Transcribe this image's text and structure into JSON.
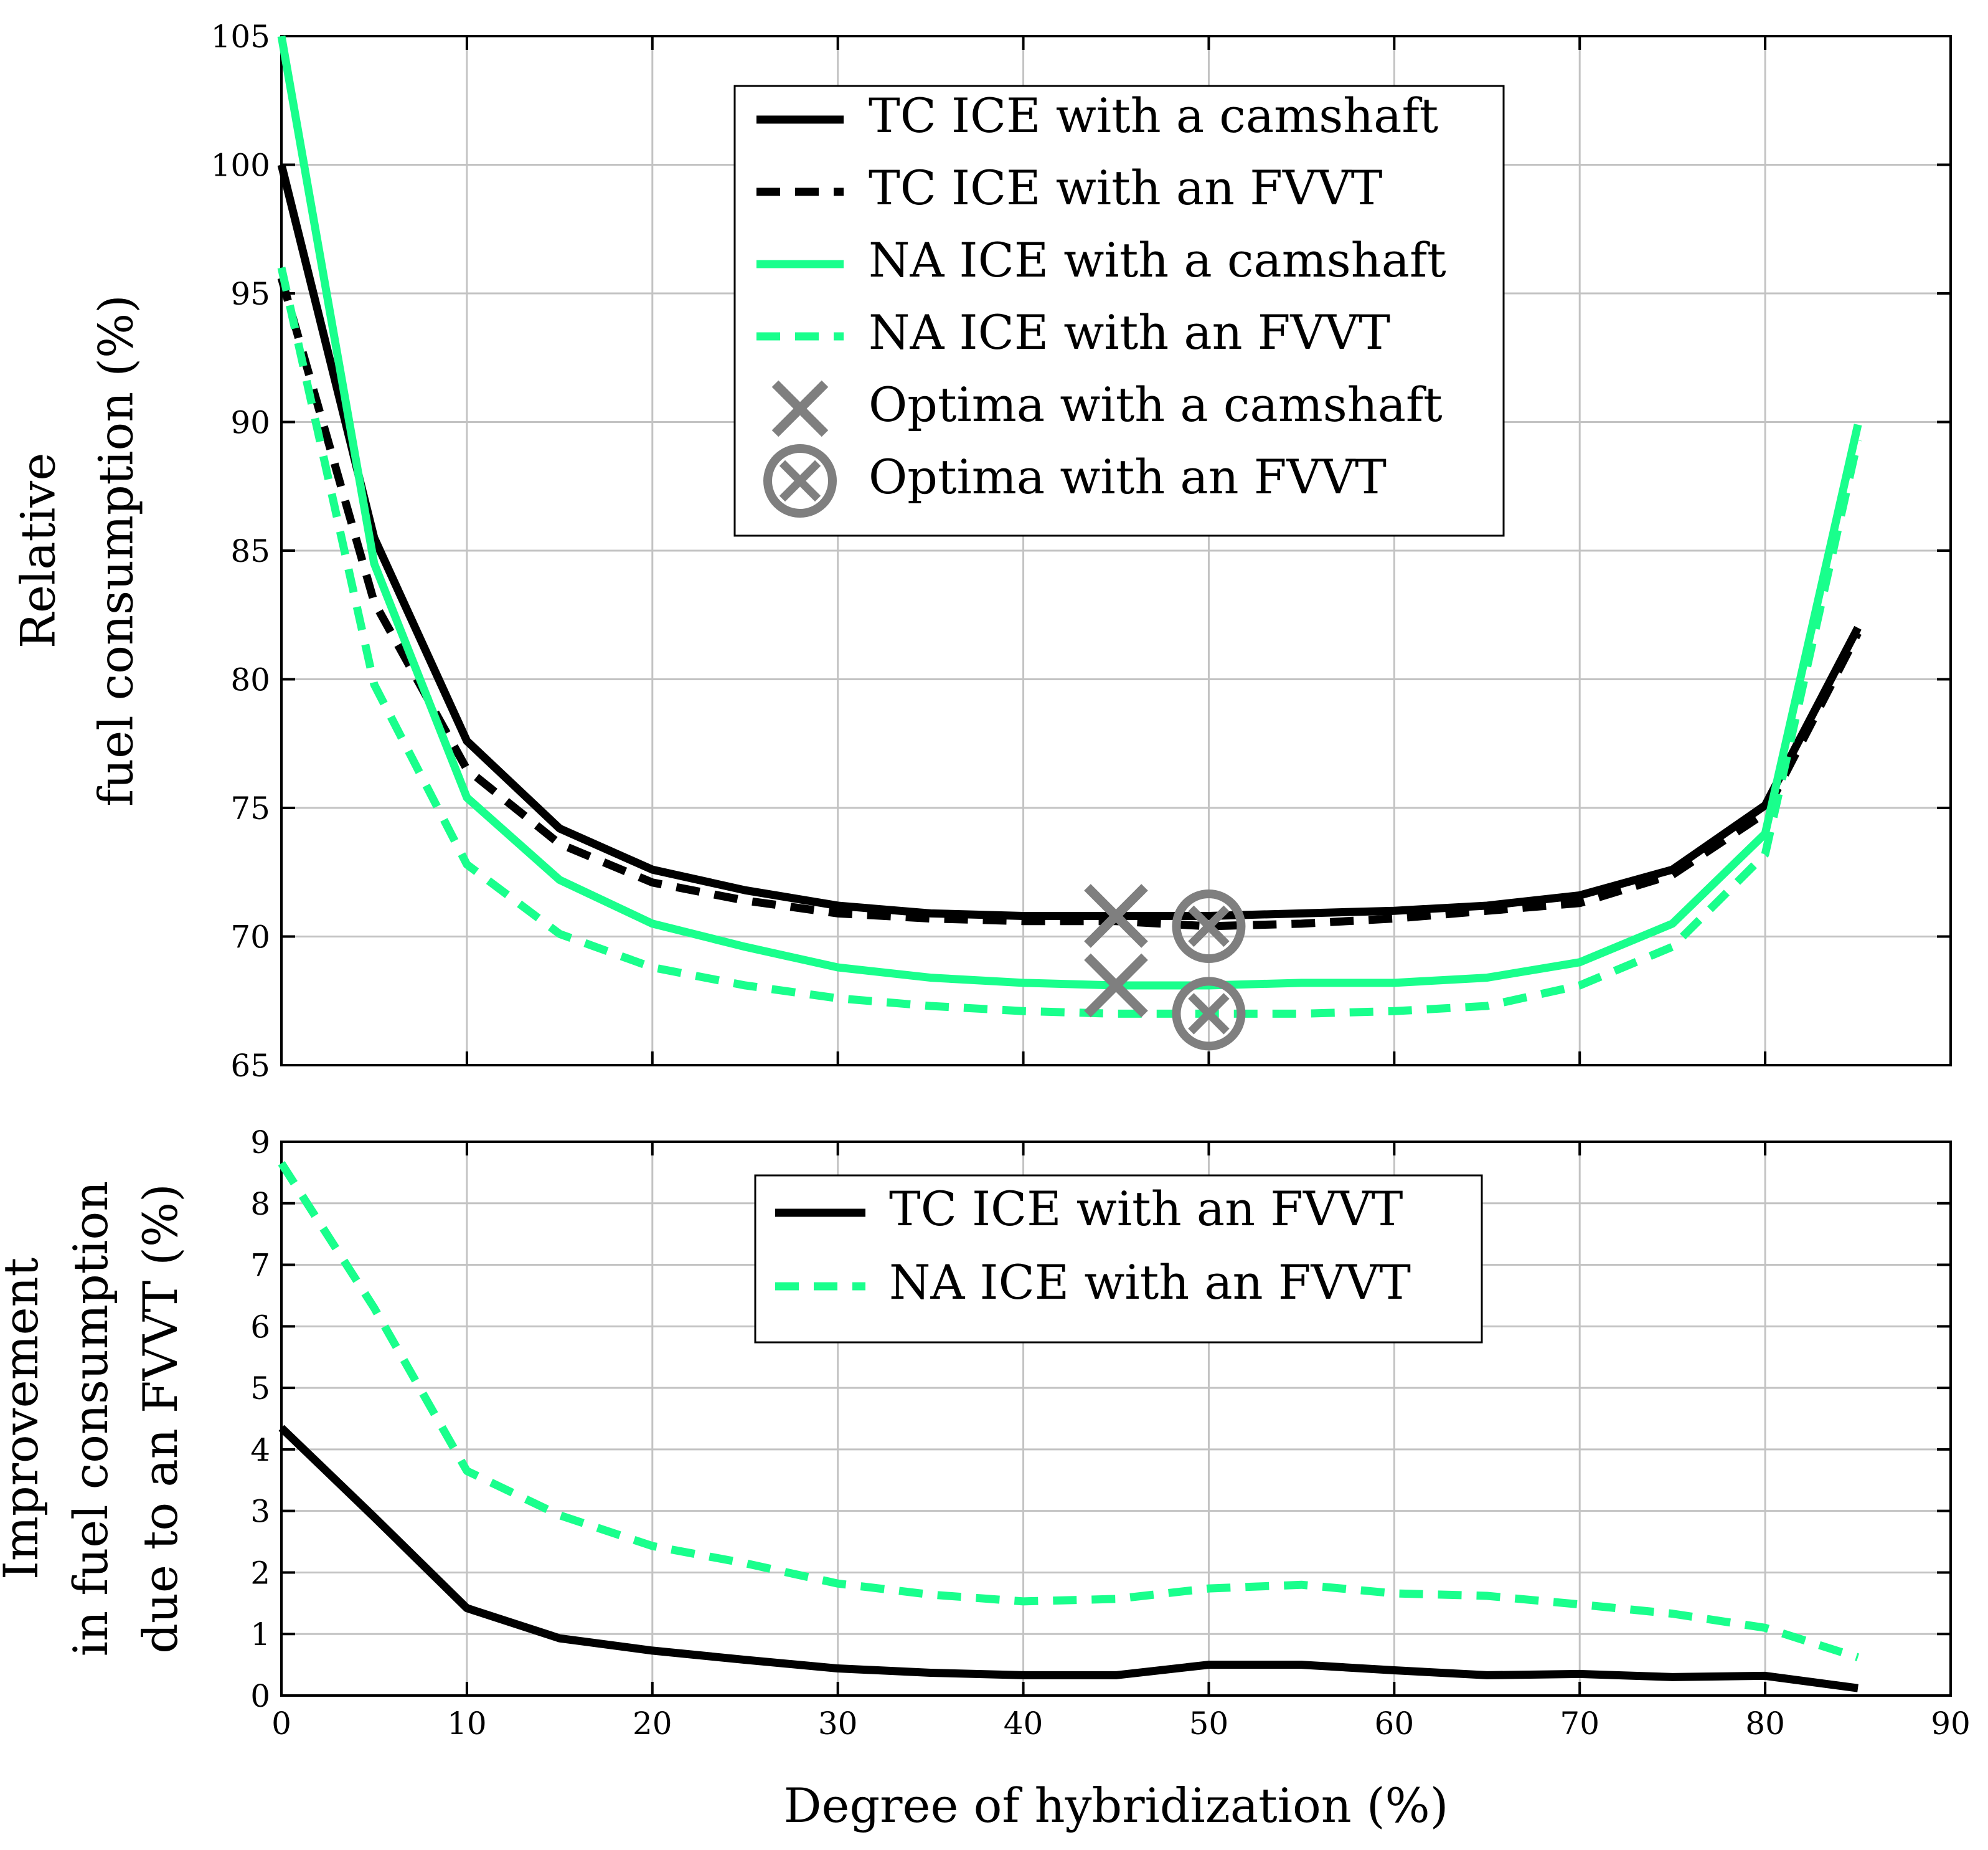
{
  "chart_data": [
    {
      "type": "line",
      "xlabel": "",
      "ylabel": [
        "Relative",
        "fuel consumption (%)"
      ],
      "xlim": [
        0,
        90
      ],
      "ylim": [
        65,
        105
      ],
      "x_ticks": [
        0,
        10,
        20,
        30,
        40,
        50,
        60,
        70,
        80,
        90
      ],
      "y_ticks": [
        65,
        70,
        75,
        80,
        85,
        90,
        95,
        100,
        105
      ],
      "grid": true,
      "legend_position": "top-center",
      "series": [
        {
          "name": "TC ICE with a camshaft",
          "color": "#000000",
          "dash": "solid",
          "x": [
            0,
            5,
            10,
            15,
            20,
            25,
            30,
            35,
            40,
            45,
            50,
            55,
            60,
            65,
            70,
            75,
            80,
            85
          ],
          "y": [
            100,
            85.5,
            77.6,
            74.2,
            72.6,
            71.8,
            71.2,
            70.9,
            70.8,
            70.8,
            70.8,
            70.9,
            71.0,
            71.2,
            71.6,
            72.6,
            75.1,
            82.0
          ]
        },
        {
          "name": "TC ICE with an FVVT",
          "color": "#000000",
          "dash": "dashed",
          "x": [
            0,
            5,
            10,
            15,
            20,
            25,
            30,
            35,
            40,
            45,
            50,
            55,
            60,
            65,
            70,
            75,
            80,
            85
          ],
          "y": [
            95.6,
            83.0,
            76.5,
            73.6,
            72.1,
            71.4,
            70.9,
            70.7,
            70.6,
            70.6,
            70.4,
            70.5,
            70.7,
            71.0,
            71.3,
            72.4,
            74.8,
            81.8
          ]
        },
        {
          "name": "NA ICE with a camshaft",
          "color": "#19ff8c",
          "dash": "solid",
          "x": [
            0,
            5,
            10,
            15,
            20,
            25,
            30,
            35,
            40,
            45,
            50,
            55,
            60,
            65,
            70,
            75,
            80,
            85
          ],
          "y": [
            105,
            84.5,
            75.4,
            72.2,
            70.5,
            69.6,
            68.8,
            68.4,
            68.2,
            68.1,
            68.1,
            68.2,
            68.2,
            68.4,
            69.0,
            70.5,
            74.0,
            89.9
          ]
        },
        {
          "name": "NA ICE with an FVVT",
          "color": "#19ff8c",
          "dash": "dashed",
          "x": [
            0,
            5,
            10,
            15,
            20,
            25,
            30,
            35,
            40,
            45,
            50,
            55,
            60,
            65,
            70,
            75,
            80,
            85
          ],
          "y": [
            96.0,
            79.8,
            72.8,
            70.1,
            68.8,
            68.1,
            67.6,
            67.3,
            67.1,
            67.0,
            67.0,
            67.0,
            67.1,
            67.3,
            68.1,
            69.6,
            73.2,
            89.3
          ]
        }
      ],
      "markers": [
        {
          "name": "Optima with a camshaft",
          "symbol": "x",
          "color": "#7f7f7f",
          "points": [
            [
              45,
              70.8
            ],
            [
              45,
              68.1
            ]
          ]
        },
        {
          "name": "Optima with an FVVT",
          "symbol": "circle-x",
          "color": "#7f7f7f",
          "points": [
            [
              50,
              70.4
            ],
            [
              50,
              67.0
            ]
          ]
        }
      ]
    },
    {
      "type": "line",
      "xlabel": "Degree of hybridization (%)",
      "ylabel": [
        "Improvement",
        "in fuel consumption",
        "due to an FVVT (%)"
      ],
      "xlim": [
        0,
        90
      ],
      "ylim": [
        0,
        9
      ],
      "x_ticks": [
        0,
        10,
        20,
        30,
        40,
        50,
        60,
        70,
        80,
        90
      ],
      "y_ticks": [
        0,
        1,
        2,
        3,
        4,
        5,
        6,
        7,
        8,
        9
      ],
      "grid": true,
      "legend_position": "top-center",
      "series": [
        {
          "name": "TC ICE with an FVVT",
          "color": "#000000",
          "dash": "solid",
          "x": [
            0,
            5,
            10,
            15,
            20,
            25,
            30,
            35,
            40,
            45,
            50,
            55,
            60,
            65,
            70,
            75,
            80,
            85
          ],
          "y": [
            4.35,
            2.9,
            1.42,
            0.93,
            0.73,
            0.58,
            0.44,
            0.37,
            0.33,
            0.33,
            0.5,
            0.5,
            0.41,
            0.33,
            0.35,
            0.3,
            0.32,
            0.12
          ]
        },
        {
          "name": "NA ICE with an FVVT",
          "color": "#19ff8c",
          "dash": "dashed",
          "x": [
            0,
            5,
            10,
            15,
            20,
            25,
            30,
            35,
            40,
            45,
            50,
            55,
            60,
            65,
            70,
            75,
            80,
            85
          ],
          "y": [
            8.65,
            6.3,
            3.65,
            2.93,
            2.43,
            2.15,
            1.82,
            1.64,
            1.53,
            1.57,
            1.74,
            1.8,
            1.66,
            1.62,
            1.48,
            1.33,
            1.1,
            0.62
          ]
        }
      ]
    }
  ]
}
